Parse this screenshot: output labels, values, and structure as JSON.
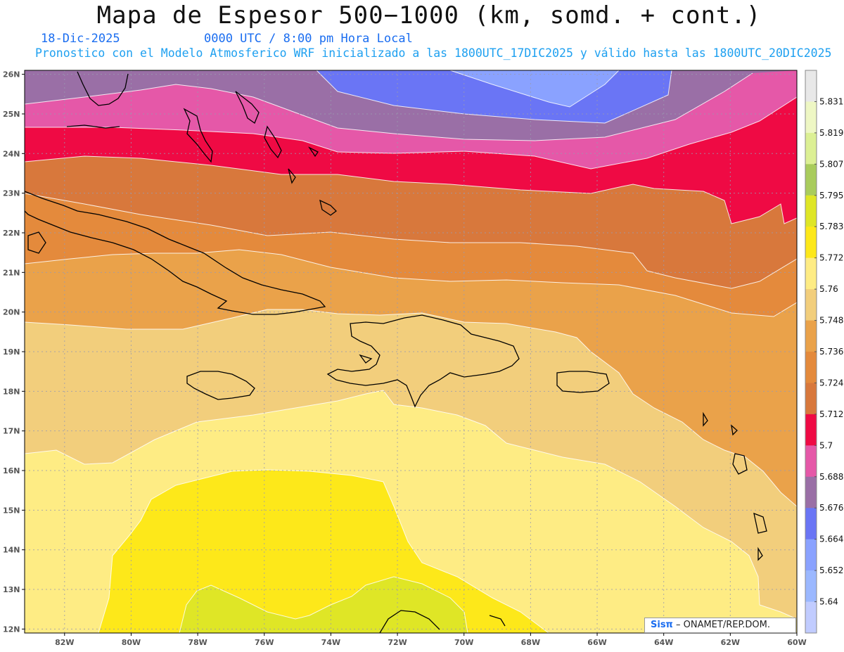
{
  "header": {
    "title": "Mapa de Espesor 500−1000 (km, somd. + cont.)",
    "date": "18-Dic-2025",
    "time": "0000 UTC / 8:00 pm Hora Local",
    "description": "Pronostico con el Modelo Atmosferico WRF inicializado a las 1800UTC_17DIC2025 y válido hasta las  1800UTC_20DIC2025"
  },
  "map": {
    "lat_labels": [
      "26N",
      "25N",
      "24N",
      "23N",
      "22N",
      "21N",
      "20N",
      "19N",
      "18N",
      "17N",
      "16N",
      "15N",
      "14N",
      "13N",
      "12N"
    ],
    "lon_labels": [
      "82W",
      "80W",
      "78W",
      "76W",
      "74W",
      "72W",
      "70W",
      "68W",
      "66W",
      "64W",
      "62W",
      "60W"
    ],
    "lon_range": [
      -83.2,
      -60
    ],
    "lat_range": [
      11.9,
      26.1
    ],
    "contour_colors": {
      "5.676": "#9a6fa6",
      "5.664": "#6a75f5",
      "5.652": "#8aa2ff",
      "5.688": "#e558a8",
      "5.7": "#ef0a44",
      "5.712": "#d8783c",
      "5.724": "#e48a3c",
      "5.736": "#eaa24a",
      "5.748": "#f2ce7c",
      "5.76": "#feec84",
      "5.772": "#fde81a",
      "5.783": "#dfe626"
    }
  },
  "colorbar": {
    "labels": [
      "5.831",
      "5.819",
      "5.807",
      "5.795",
      "5.783",
      "5.772",
      "5.76",
      "5.748",
      "5.736",
      "5.724",
      "5.712",
      "5.7",
      "5.688",
      "5.676",
      "5.664",
      "5.652",
      "5.64"
    ],
    "colors": [
      "#e8e8e8",
      "#eef7c4",
      "#dcf094",
      "#a9cc5c",
      "#dfe626",
      "#fde81a",
      "#feec84",
      "#f2ce7c",
      "#eaa24a",
      "#e48a3c",
      "#d8783c",
      "#ef0a44",
      "#e558a8",
      "#9a6fa6",
      "#6a75f5",
      "#8aa2ff",
      "#9bb8ff",
      "#c1ccff"
    ]
  },
  "credit": {
    "brand": "Sisπ",
    "text": " – ONAMET/REP.DOM."
  }
}
